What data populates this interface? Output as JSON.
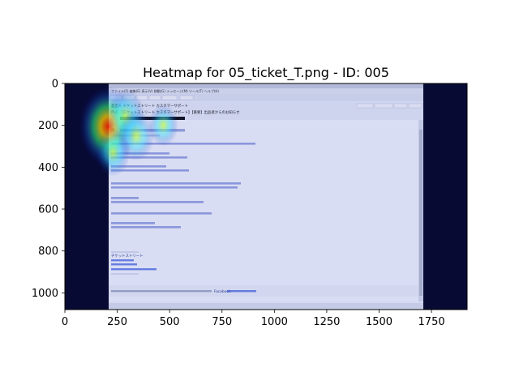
{
  "chart_data": {
    "type": "heatmap",
    "title": "Heatmap for 05_ticket_T.png - ID: 005",
    "xlabel": "",
    "ylabel": "",
    "xlim": [
      0,
      1920
    ],
    "ylim": [
      1080,
      0
    ],
    "x_ticks": [
      0,
      250,
      500,
      750,
      1000,
      1250,
      1500,
      1750
    ],
    "y_ticks": [
      0,
      200,
      400,
      600,
      800,
      1000
    ],
    "colormap": "jet",
    "grid": false,
    "hotspots": [
      {
        "x": 205,
        "y": 205,
        "intensity": 1.0
      },
      {
        "x": 290,
        "y": 155,
        "intensity": 0.55
      },
      {
        "x": 340,
        "y": 250,
        "intensity": 0.5
      },
      {
        "x": 230,
        "y": 330,
        "intensity": 0.45
      },
      {
        "x": 470,
        "y": 200,
        "intensity": 0.35
      }
    ]
  },
  "email_window": {
    "menu": "ファイル(F)  編集(E)  表示(V)  移動(G)  メッセージ(M)  ツール(T)  ヘルプ(H)",
    "sender_line": "差出人 チケットストリート カスタマーサポート",
    "subject_line": "件名 【チケットストリート カスタマーサポート】【重要】出品者からのお知らせ",
    "greeting": "様",
    "signature_company": "チケットストリート",
    "footer_text": "このメールはチケットストリート カスタマーサポートからお送りしています。",
    "footer_links": [
      "Facebook",
      "プライバシーポリシー"
    ]
  }
}
